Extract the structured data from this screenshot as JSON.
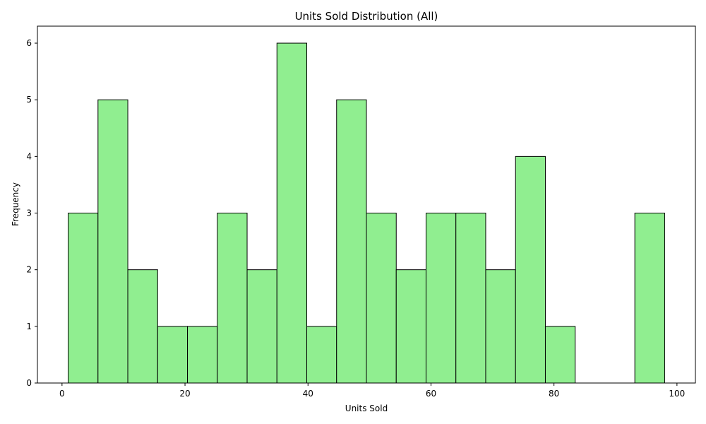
{
  "chart_data": {
    "type": "bar",
    "title": "Units Sold Distribution (All)",
    "xlabel": "Units Sold",
    "ylabel": "Frequency",
    "xlim": [
      -4,
      103
    ],
    "ylim": [
      0,
      6.3
    ],
    "xticks": [
      0,
      20,
      40,
      60,
      80,
      100
    ],
    "yticks": [
      0,
      1,
      2,
      3,
      4,
      5,
      6
    ],
    "bin_edges": [
      1.0,
      5.85,
      10.7,
      15.55,
      20.4,
      25.25,
      30.1,
      34.95,
      39.8,
      44.65,
      49.5,
      54.35,
      59.2,
      64.05,
      68.9,
      73.75,
      78.6,
      83.45,
      88.3,
      93.15,
      98.0
    ],
    "values": [
      3,
      5,
      2,
      1,
      1,
      3,
      2,
      6,
      1,
      5,
      3,
      2,
      3,
      3,
      2,
      4,
      1,
      0,
      0,
      3
    ],
    "bar_color": "#90ee90",
    "edge_color": "#000000",
    "grid": false,
    "legend": "none"
  }
}
